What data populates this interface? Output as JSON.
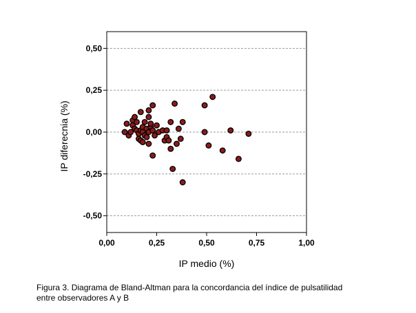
{
  "chart_data": {
    "type": "scatter",
    "xlabel": "IP medio (%)",
    "ylabel": "IP diferecnia (%)",
    "xlim": [
      0,
      1
    ],
    "ylim": [
      -0.6,
      0.6
    ],
    "xticks": [
      0,
      0.25,
      0.5,
      0.75,
      1
    ],
    "xtick_labels": [
      "0,00",
      "0,25",
      "0,50",
      "0,75",
      "1,00"
    ],
    "yticks": [
      0.5,
      0.25,
      0,
      -0.25,
      -0.5
    ],
    "ytick_labels": [
      "0,50",
      "0,25",
      "0,00",
      "-0,25",
      "-0,50"
    ],
    "grid": "horizontal dashed at y ticks",
    "marker_color": "#8b1a1a",
    "marker_edge": "#000000",
    "points": [
      [
        0.09,
        0.0
      ],
      [
        0.1,
        0.05
      ],
      [
        0.11,
        -0.02
      ],
      [
        0.12,
        0.0
      ],
      [
        0.13,
        0.07
      ],
      [
        0.13,
        0.04
      ],
      [
        0.14,
        0.09
      ],
      [
        0.14,
        0.02
      ],
      [
        0.15,
        0.06
      ],
      [
        0.15,
        0.01
      ],
      [
        0.16,
        -0.01
      ],
      [
        0.16,
        -0.04
      ],
      [
        0.17,
        0.01
      ],
      [
        0.17,
        0.12
      ],
      [
        0.17,
        -0.05
      ],
      [
        0.18,
        0.03
      ],
      [
        0.18,
        -0.06
      ],
      [
        0.18,
        0.0
      ],
      [
        0.19,
        0.06
      ],
      [
        0.19,
        -0.02
      ],
      [
        0.2,
        0.02
      ],
      [
        0.2,
        -0.03
      ],
      [
        0.21,
        0.13
      ],
      [
        0.21,
        0.09
      ],
      [
        0.21,
        0.0
      ],
      [
        0.21,
        -0.07
      ],
      [
        0.22,
        0.03
      ],
      [
        0.22,
        0.05
      ],
      [
        0.23,
        0.16
      ],
      [
        0.23,
        0.01
      ],
      [
        0.23,
        -0.14
      ],
      [
        0.24,
        -0.02
      ],
      [
        0.25,
        0.04
      ],
      [
        0.26,
        0.0
      ],
      [
        0.28,
        0.01
      ],
      [
        0.29,
        -0.05
      ],
      [
        0.3,
        0.01
      ],
      [
        0.3,
        -0.03
      ],
      [
        0.31,
        -0.05
      ],
      [
        0.32,
        0.06
      ],
      [
        0.32,
        -0.1
      ],
      [
        0.33,
        -0.22
      ],
      [
        0.34,
        0.17
      ],
      [
        0.35,
        -0.07
      ],
      [
        0.36,
        0.02
      ],
      [
        0.37,
        -0.04
      ],
      [
        0.38,
        0.06
      ],
      [
        0.38,
        -0.3
      ],
      [
        0.49,
        0.16
      ],
      [
        0.49,
        0.0
      ],
      [
        0.51,
        -0.08
      ],
      [
        0.53,
        0.21
      ],
      [
        0.58,
        -0.11
      ],
      [
        0.62,
        0.01
      ],
      [
        0.66,
        -0.16
      ],
      [
        0.71,
        -0.01
      ]
    ]
  },
  "caption": {
    "line1": "Figura 3. Diagrama de Bland-Altman para la concordancia del índice de pulsatilidad",
    "line2": "entre observadores A y B"
  }
}
